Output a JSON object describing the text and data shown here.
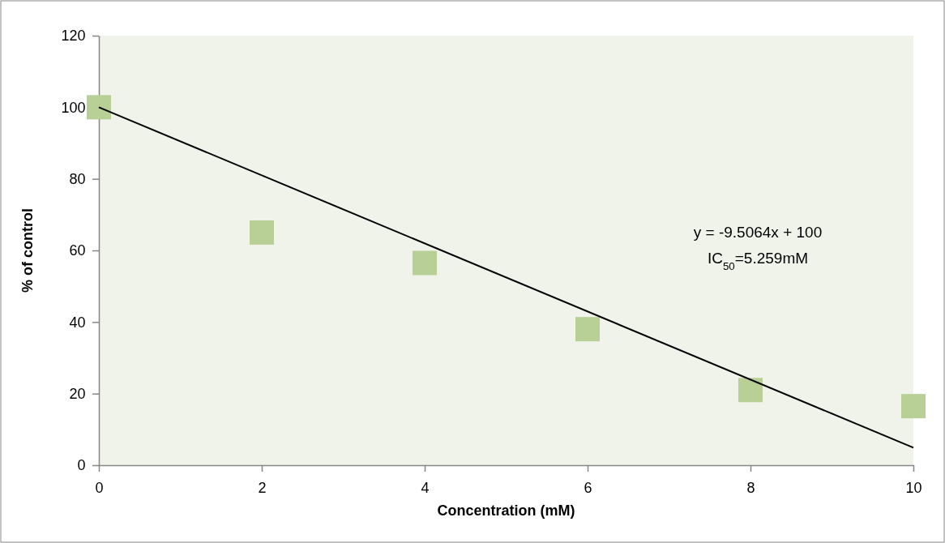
{
  "chart_data": {
    "type": "scatter",
    "xlabel": "Concentration (mM)",
    "ylabel": "% of control",
    "xlim": [
      0,
      10
    ],
    "xticks": [
      0,
      2,
      4,
      6,
      8,
      10
    ],
    "ylim": [
      0,
      120
    ],
    "yticks": [
      0,
      20,
      40,
      60,
      80,
      100,
      120
    ],
    "grid": false,
    "annotations": [
      "y = -9.5064x + 100",
      "IC$_{50}$=5.259mM"
    ],
    "series": [
      {
        "marker": "square",
        "color": "#b8cf96",
        "x": [
          0,
          2,
          4,
          6,
          8,
          10
        ],
        "values": [
          100,
          65,
          56.5,
          38,
          21,
          16.5
        ]
      },
      {
        "type": "line",
        "marker": "none",
        "color": "#000000",
        "x": [
          0,
          10
        ],
        "values": [
          100,
          4.9
        ]
      }
    ]
  }
}
